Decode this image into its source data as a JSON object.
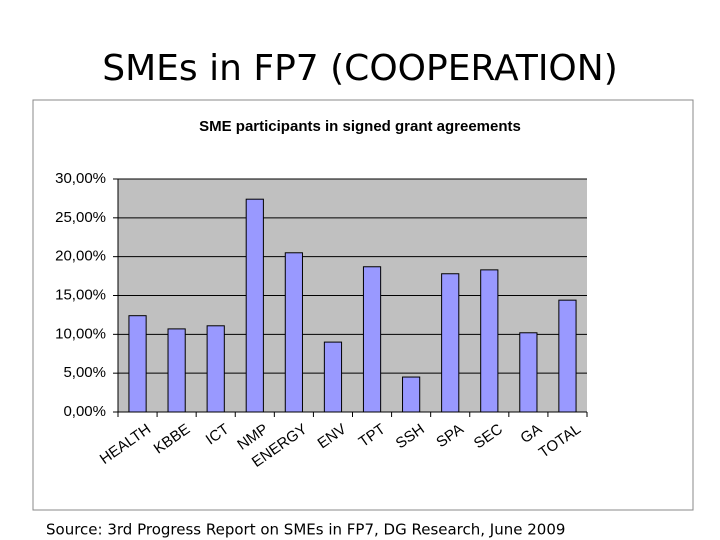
{
  "slide": {
    "title": "SMEs in FP7 (COOPERATION)",
    "source": "Source:  3rd Progress Report on SMEs in FP7, DG Research, June 2009"
  },
  "chart_data": {
    "type": "bar",
    "title": "SME participants in signed grant agreements",
    "categories": [
      "HEALTH",
      "KBBE",
      "ICT",
      "NMP",
      "ENERGY",
      "ENV",
      "TPT",
      "SSH",
      "SPA",
      "SEC",
      "GA",
      "TOTAL"
    ],
    "values": [
      12.4,
      10.7,
      11.1,
      27.4,
      20.5,
      9.0,
      18.7,
      4.5,
      17.8,
      18.3,
      10.2,
      14.4
    ],
    "color": "#9999ff",
    "ylim": [
      0,
      30
    ],
    "yticks": [
      {
        "value": 0,
        "label": "0,00%"
      },
      {
        "value": 5,
        "label": "5,00%"
      },
      {
        "value": 10,
        "label": "10,00%"
      },
      {
        "value": 15,
        "label": "15,00%"
      },
      {
        "value": 20,
        "label": "20,00%"
      },
      {
        "value": 25,
        "label": "25,00%"
      },
      {
        "value": 30,
        "label": "30,00%"
      }
    ],
    "grid": true
  }
}
